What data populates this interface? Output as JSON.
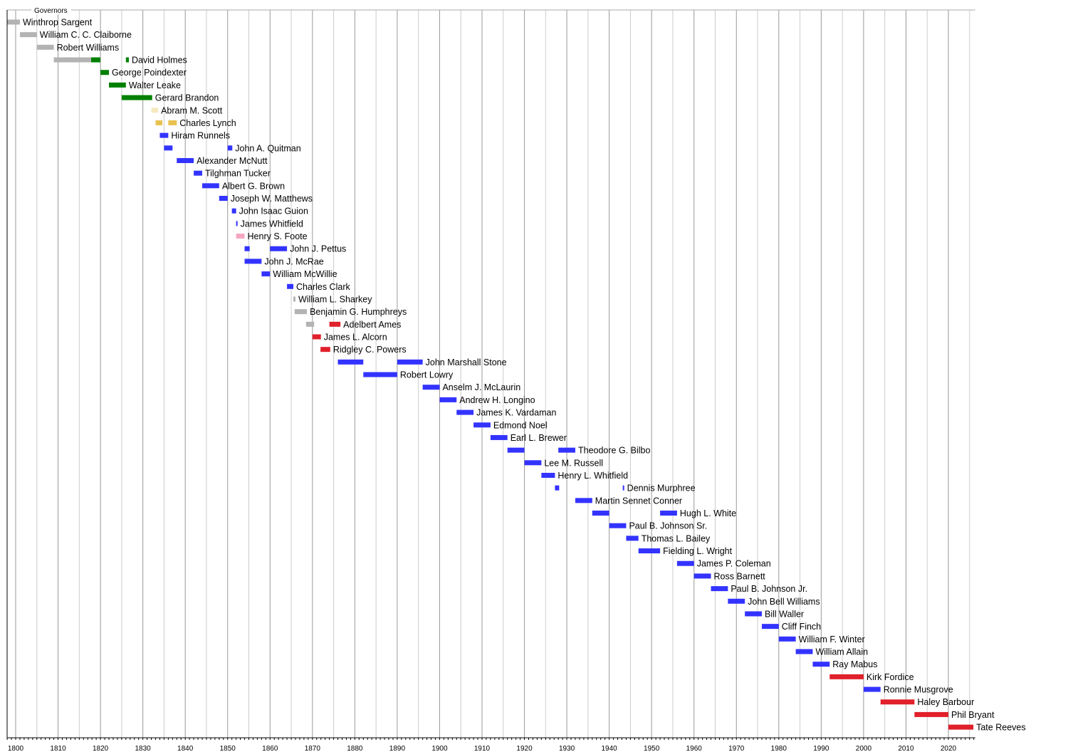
{
  "chart_data": {
    "type": "timeline",
    "title": "Governors",
    "xlim": [
      1798,
      2026
    ],
    "x_ticks": [
      1800,
      1810,
      1820,
      1830,
      1840,
      1850,
      1860,
      1870,
      1880,
      1890,
      1900,
      1910,
      1920,
      1930,
      1940,
      1950,
      1960,
      1970,
      1980,
      1990,
      2000,
      2010,
      2020
    ],
    "grid": true,
    "colors": {
      "gray": "#b3b3b3",
      "green": "#008000",
      "light_yellow": "#f5e8c0",
      "yellow": "#e8c250",
      "blue": "#3333ff",
      "pink": "#f4a8c0",
      "red": "#e0202a"
    },
    "rows": [
      {
        "name": "Winthrop Sargent",
        "terms": [
          [
            1798,
            1801,
            "gray"
          ]
        ]
      },
      {
        "name": "William C. C. Claiborne",
        "terms": [
          [
            1801,
            1805,
            "gray"
          ]
        ]
      },
      {
        "name": "Robert Williams",
        "terms": [
          [
            1805,
            1809,
            "gray"
          ]
        ]
      },
      {
        "name": "David Holmes",
        "terms": [
          [
            1809,
            1817.8,
            "gray"
          ],
          [
            1817.8,
            1820,
            "green"
          ],
          [
            1826,
            1826.7,
            "green"
          ]
        ]
      },
      {
        "name": "George Poindexter",
        "terms": [
          [
            1820,
            1822,
            "green"
          ]
        ]
      },
      {
        "name": "Walter Leake",
        "terms": [
          [
            1822,
            1826,
            "green"
          ]
        ]
      },
      {
        "name": "Gerard Brandon",
        "terms": [
          [
            1825,
            1832.2,
            "green"
          ]
        ]
      },
      {
        "name": "Abram M. Scott",
        "terms": [
          [
            1832,
            1833.6,
            "light_yellow"
          ]
        ]
      },
      {
        "name": "Charles Lynch",
        "terms": [
          [
            1833,
            1834.6,
            "yellow"
          ],
          [
            1836,
            1838,
            "yellow"
          ]
        ]
      },
      {
        "name": "Hiram Runnels",
        "terms": [
          [
            1834,
            1836,
            "blue"
          ]
        ]
      },
      {
        "name": "John A. Quitman",
        "terms": [
          [
            1835,
            1837,
            "blue"
          ],
          [
            1850,
            1851.1,
            "blue"
          ]
        ]
      },
      {
        "name": "Alexander McNutt",
        "terms": [
          [
            1838,
            1842,
            "blue"
          ]
        ]
      },
      {
        "name": "Tilghman Tucker",
        "terms": [
          [
            1842,
            1844,
            "blue"
          ]
        ]
      },
      {
        "name": "Albert G. Brown",
        "terms": [
          [
            1844,
            1848,
            "blue"
          ]
        ]
      },
      {
        "name": "Joseph W. Matthews",
        "terms": [
          [
            1848,
            1850,
            "blue"
          ]
        ]
      },
      {
        "name": "John Isaac Guion",
        "terms": [
          [
            1851,
            1852,
            "blue"
          ]
        ]
      },
      {
        "name": "James Whitfield",
        "terms": [
          [
            1852,
            1852.3,
            "blue"
          ]
        ]
      },
      {
        "name": "Henry S. Foote",
        "terms": [
          [
            1852,
            1854,
            "pink"
          ]
        ]
      },
      {
        "name": "John J. Pettus",
        "terms": [
          [
            1854,
            1855.2,
            "blue"
          ],
          [
            1860,
            1864,
            "blue"
          ]
        ]
      },
      {
        "name": "John J. McRae",
        "terms": [
          [
            1854,
            1858,
            "blue"
          ]
        ]
      },
      {
        "name": "William McWillie",
        "terms": [
          [
            1858,
            1860,
            "blue"
          ]
        ]
      },
      {
        "name": "Charles Clark",
        "terms": [
          [
            1864,
            1865.5,
            "blue"
          ]
        ]
      },
      {
        "name": "William L. Sharkey",
        "terms": [
          [
            1865.5,
            1866,
            "gray"
          ]
        ]
      },
      {
        "name": "Benjamin G. Humphreys",
        "terms": [
          [
            1865.8,
            1868.7,
            "gray"
          ]
        ]
      },
      {
        "name": "Adelbert Ames",
        "terms": [
          [
            1868.5,
            1870.4,
            "gray"
          ],
          [
            1874,
            1876.6,
            "red"
          ]
        ]
      },
      {
        "name": "James L. Alcorn",
        "terms": [
          [
            1870,
            1872,
            "red"
          ]
        ]
      },
      {
        "name": "Ridgley C. Powers",
        "terms": [
          [
            1871.9,
            1874.2,
            "red"
          ]
        ]
      },
      {
        "name": "John Marshall Stone",
        "terms": [
          [
            1876,
            1882,
            "blue"
          ],
          [
            1890,
            1896,
            "blue"
          ]
        ]
      },
      {
        "name": "Robert Lowry",
        "terms": [
          [
            1882,
            1890,
            "blue"
          ]
        ]
      },
      {
        "name": "Anselm J. McLaurin",
        "terms": [
          [
            1896,
            1900,
            "blue"
          ]
        ]
      },
      {
        "name": "Andrew H. Longino",
        "terms": [
          [
            1900,
            1904,
            "blue"
          ]
        ]
      },
      {
        "name": "James K. Vardaman",
        "terms": [
          [
            1904,
            1908,
            "blue"
          ]
        ]
      },
      {
        "name": "Edmond Noel",
        "terms": [
          [
            1908,
            1912,
            "blue"
          ]
        ]
      },
      {
        "name": "Earl L. Brewer",
        "terms": [
          [
            1912,
            1916,
            "blue"
          ]
        ]
      },
      {
        "name": "Theodore G. Bilbo",
        "terms": [
          [
            1916,
            1920,
            "blue"
          ],
          [
            1928,
            1932,
            "blue"
          ]
        ]
      },
      {
        "name": "Lee M. Russell",
        "terms": [
          [
            1920,
            1924,
            "blue"
          ]
        ]
      },
      {
        "name": "Henry L. Whitfield",
        "terms": [
          [
            1924,
            1927.2,
            "blue"
          ]
        ]
      },
      {
        "name": "Dennis Murphree",
        "terms": [
          [
            1927.2,
            1928.2,
            "blue"
          ],
          [
            1943.2,
            1943.5,
            "blue"
          ]
        ]
      },
      {
        "name": "Martin Sennet Conner",
        "terms": [
          [
            1932,
            1936,
            "blue"
          ]
        ]
      },
      {
        "name": "Hugh L. White",
        "terms": [
          [
            1936,
            1940,
            "blue"
          ],
          [
            1952,
            1956,
            "blue"
          ]
        ]
      },
      {
        "name": "Paul B. Johnson Sr.",
        "terms": [
          [
            1940,
            1944,
            "blue"
          ]
        ]
      },
      {
        "name": "Thomas L. Bailey",
        "terms": [
          [
            1944,
            1946.9,
            "blue"
          ]
        ]
      },
      {
        "name": "Fielding L. Wright",
        "terms": [
          [
            1946.9,
            1952,
            "blue"
          ]
        ]
      },
      {
        "name": "James P. Coleman",
        "terms": [
          [
            1956,
            1960,
            "blue"
          ]
        ]
      },
      {
        "name": "Ross Barnett",
        "terms": [
          [
            1960,
            1964,
            "blue"
          ]
        ]
      },
      {
        "name": "Paul B. Johnson Jr.",
        "terms": [
          [
            1964,
            1968,
            "blue"
          ]
        ]
      },
      {
        "name": "John Bell Williams",
        "terms": [
          [
            1968,
            1972,
            "blue"
          ]
        ]
      },
      {
        "name": "Bill Waller",
        "terms": [
          [
            1972,
            1976,
            "blue"
          ]
        ]
      },
      {
        "name": "Cliff Finch",
        "terms": [
          [
            1976,
            1980,
            "blue"
          ]
        ]
      },
      {
        "name": "William F. Winter",
        "terms": [
          [
            1980,
            1984,
            "blue"
          ]
        ]
      },
      {
        "name": "William Allain",
        "terms": [
          [
            1984,
            1988,
            "blue"
          ]
        ]
      },
      {
        "name": "Ray Mabus",
        "terms": [
          [
            1988,
            1992,
            "blue"
          ]
        ]
      },
      {
        "name": "Kirk Fordice",
        "terms": [
          [
            1992,
            2000,
            "red"
          ]
        ]
      },
      {
        "name": "Ronnie Musgrove",
        "terms": [
          [
            2000,
            2004,
            "blue"
          ]
        ]
      },
      {
        "name": "Haley Barbour",
        "terms": [
          [
            2004,
            2012,
            "red"
          ]
        ]
      },
      {
        "name": "Phil Bryant",
        "terms": [
          [
            2012,
            2020,
            "red"
          ]
        ]
      },
      {
        "name": "Tate Reeves",
        "terms": [
          [
            2020,
            2025.9,
            "red"
          ]
        ]
      }
    ]
  }
}
